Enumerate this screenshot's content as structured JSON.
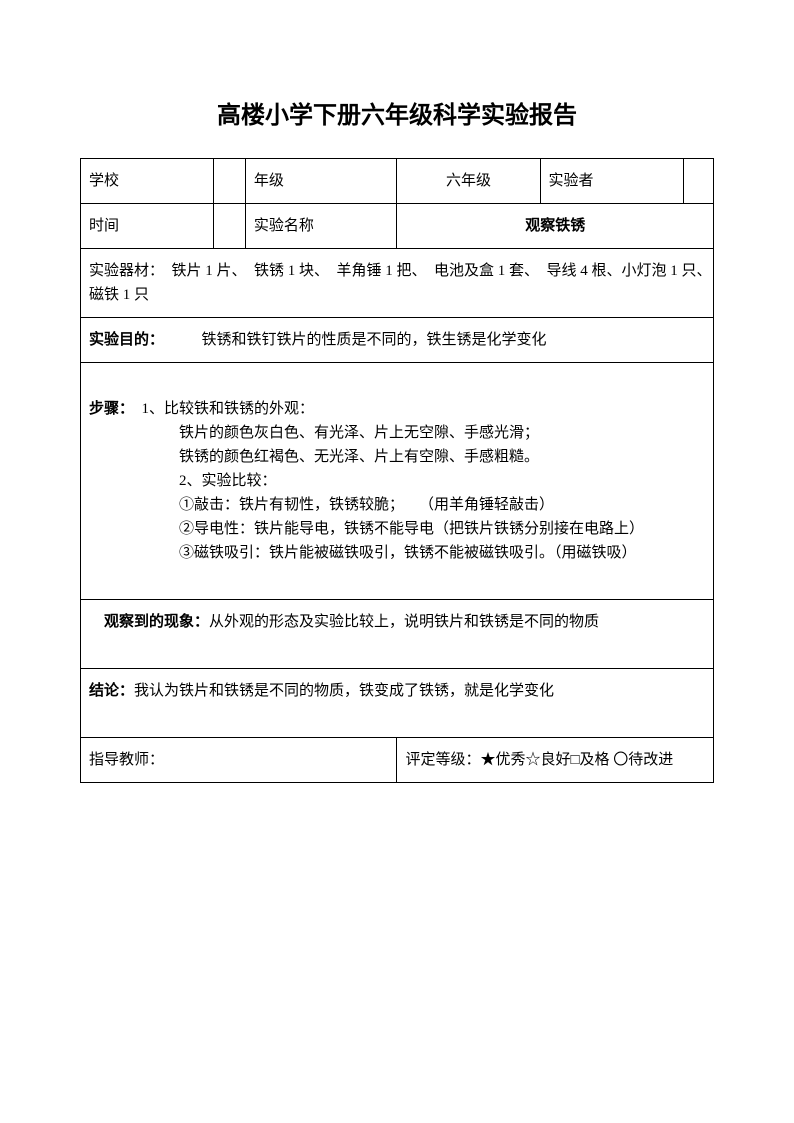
{
  "title": {
    "bold_part": "高楼小学下册",
    "normal_part": "六年级科学实验报告"
  },
  "row1": {
    "school_label": "学校",
    "grade_label": "年级",
    "grade_value": "六年级",
    "experimenter_label": "实验者"
  },
  "row2": {
    "time_label": "时间",
    "exp_name_label": "实验名称",
    "exp_name_value": "观察铁锈"
  },
  "materials": {
    "label": "实验器材：",
    "content": "　铁片 1 片、　铁锈 1 块、　羊角锤 1 把、　电池及盒 1 套、　导线 4 根、小灯泡 1 只、　磁铁 1 只"
  },
  "purpose": {
    "label": "实验目的：",
    "content": "　　　铁锈和铁钉铁片的性质是不同的，铁生锈是化学变化"
  },
  "steps": {
    "label": "步骤：",
    "line1": "1、比较铁和铁锈的外观：",
    "line2": "铁片的颜色灰白色、有光泽、片上无空隙、手感光滑；",
    "line3": "铁锈的颜色红褐色、无光泽、片上有空隙、手感粗糙。",
    "line4": "2、实验比较：",
    "line5": "①敲击：铁片有韧性，铁锈较脆；　　（用羊角锤轻敲击）",
    "line6": "②导电性：铁片能导电，铁锈不能导电（把铁片铁锈分别接在电路上）",
    "line7": "③磁铁吸引：铁片能被磁铁吸引，铁锈不能被磁铁吸引。（用磁铁吸）"
  },
  "observation": {
    "label": "观察到的现象：",
    "content": "从外观的形态及实验比较上，说明铁片和铁锈是不同的物质"
  },
  "conclusion": {
    "label": "结论：",
    "content": "我认为铁片和铁锈是不同的物质，铁变成了铁锈，就是化学变化"
  },
  "footer": {
    "teacher_label": "指导教师：",
    "rating_label": "评定等级：",
    "rating_options": "★优秀☆良好□及格 〇待改进"
  }
}
